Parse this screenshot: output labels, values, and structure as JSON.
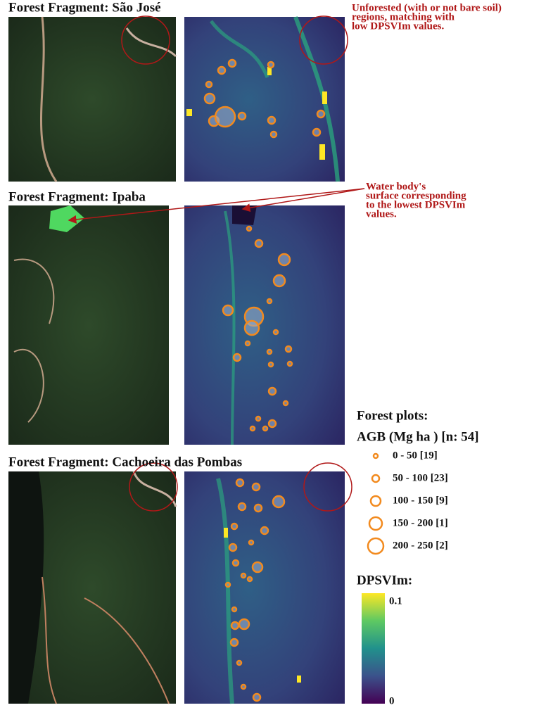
{
  "panels": [
    {
      "title": "Forest Fragment: São José"
    },
    {
      "title": "Forest Fragment: Ipaba"
    },
    {
      "title": "Forest Fragment: Cachoeira das Pombas"
    }
  ],
  "annotations": [
    {
      "lines": [
        "Unforested (with or not bare soil)",
        "regions, matching with",
        "low DPSVIm values."
      ]
    },
    {
      "lines": [
        "Water body's",
        "surface corresponding",
        "to the lowest DPSVIm",
        "values."
      ]
    }
  ],
  "legend": {
    "title": "Forest plots:",
    "subtitle": "AGB (Mg ha  ) [n: 54]",
    "items": [
      "0 - 50 [19]",
      "50 - 100 [23]",
      "100 - 150 [9]",
      "150 - 200 [1]",
      "200 - 250 [2]"
    ]
  },
  "colorbar": {
    "title": "DPSVIm:",
    "lim": [
      0,
      0.1
    ],
    "ticks": [
      0,
      0.1
    ]
  }
}
